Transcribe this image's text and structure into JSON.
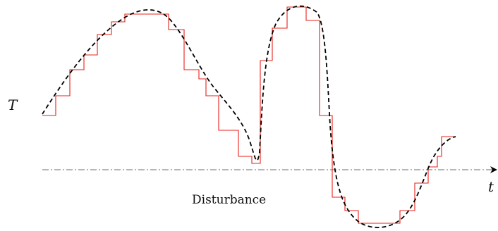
{
  "labels": {
    "y_axis": "T",
    "x_axis": "t",
    "disturbance": "Disturbance"
  },
  "colors": {
    "continuous": "#000000",
    "staircase": "#e8211a",
    "baseline": "#8a8a8a",
    "axis": "#000000"
  }
}
